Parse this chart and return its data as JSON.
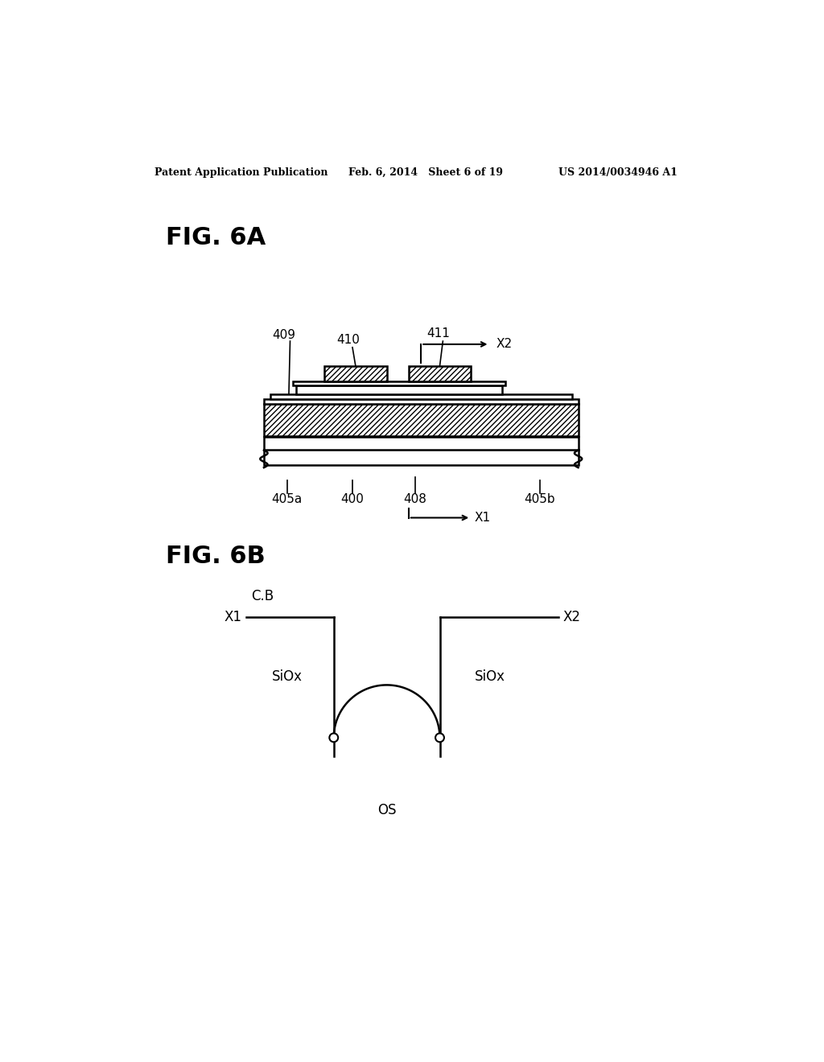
{
  "bg_color": "#ffffff",
  "text_color": "#000000",
  "header_left": "Patent Application Publication",
  "header_mid": "Feb. 6, 2014   Sheet 6 of 19",
  "header_right": "US 2014/0034946 A1",
  "fig6a_label": "FIG. 6A",
  "fig6b_label": "FIG. 6B",
  "header_fontsize": 9,
  "label_fontsize": 22,
  "anno_fontsize": 11,
  "cb_fontsize": 12
}
